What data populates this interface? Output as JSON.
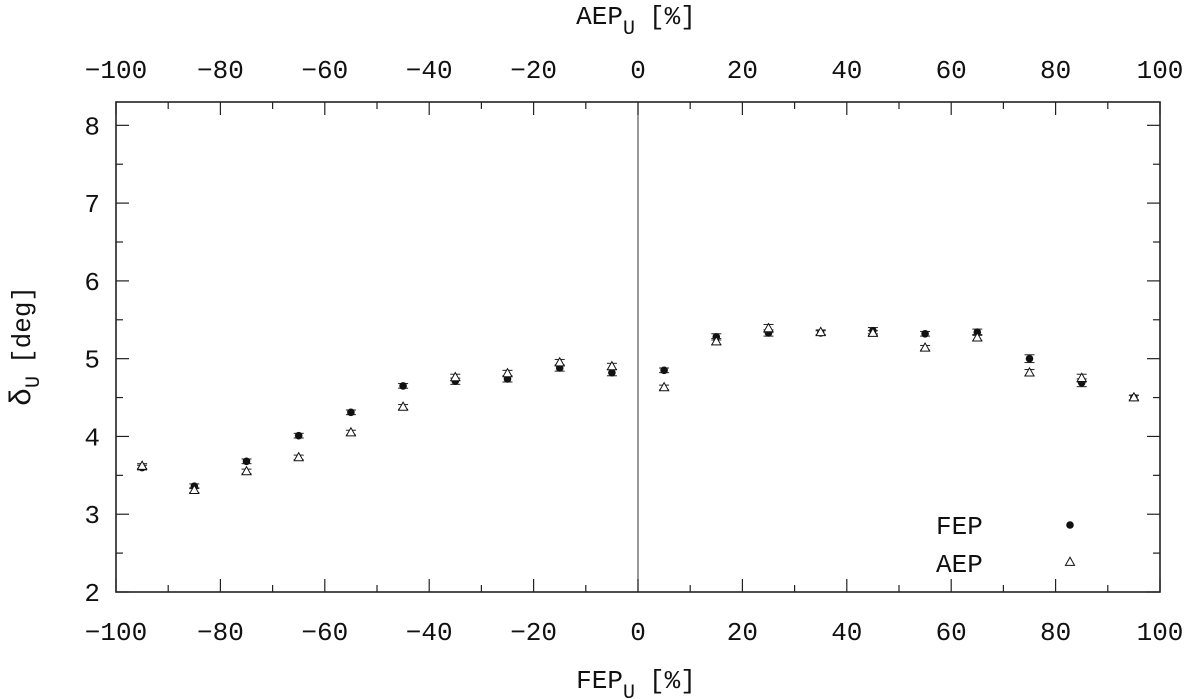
{
  "chart_data": {
    "type": "scatter",
    "title": "",
    "xlabel": "FEP",
    "xlabel_sub": "U",
    "xlabel_unit": "[%]",
    "x2label": "AEP",
    "x2label_sub": "U",
    "x2label_unit": "[%]",
    "ylabel": "δ",
    "ylabel_sub": "U",
    "ylabel_unit": "[deg]",
    "xlim": [
      -100,
      100
    ],
    "ylim": [
      2,
      8.3
    ],
    "x_ticks": [
      -100,
      -80,
      -60,
      -40,
      -20,
      0,
      20,
      40,
      60,
      80,
      100
    ],
    "x_tick_labels": [
      "−100",
      "−80",
      "−60",
      "−40",
      "−20",
      "0",
      "20",
      "40",
      "60",
      "80",
      "100"
    ],
    "y_ticks": [
      2,
      3,
      4,
      5,
      6,
      7,
      8
    ],
    "y_tick_labels": [
      "2",
      "3",
      "4",
      "5",
      "6",
      "7",
      "8"
    ],
    "zero_line": 0,
    "legend_position": "bottom-right",
    "series": [
      {
        "name": "FEP",
        "marker": "filled-circle",
        "color": "#111111",
        "x": [
          -95,
          -85,
          -75,
          -65,
          -55,
          -45,
          -35,
          -25,
          -15,
          -5,
          5,
          15,
          25,
          35,
          45,
          55,
          65,
          75,
          85,
          95
        ],
        "y": [
          3.6,
          3.36,
          3.68,
          4.01,
          4.31,
          4.65,
          4.71,
          4.74,
          4.88,
          4.82,
          4.85,
          5.28,
          5.33,
          5.33,
          5.36,
          5.32,
          5.34,
          5.0,
          4.69,
          4.5
        ],
        "err": [
          0.03,
          0.03,
          0.03,
          0.03,
          0.03,
          0.03,
          0.04,
          0.04,
          0.04,
          0.04,
          0.03,
          0.04,
          0.04,
          0.03,
          0.04,
          0.03,
          0.04,
          0.05,
          0.05,
          0.03
        ]
      },
      {
        "name": "AEP",
        "marker": "open-triangle",
        "color": "#111111",
        "x": [
          -95,
          -85,
          -75,
          -65,
          -55,
          -45,
          -35,
          -25,
          -15,
          -5,
          5,
          15,
          25,
          35,
          45,
          55,
          65,
          75,
          85,
          95
        ],
        "y": [
          3.62,
          3.31,
          3.55,
          3.73,
          4.05,
          4.38,
          4.76,
          4.81,
          4.95,
          4.9,
          4.63,
          5.22,
          5.39,
          5.34,
          5.33,
          5.14,
          5.27,
          4.82,
          4.75,
          4.5
        ],
        "err": [
          0.03,
          0.03,
          0.03,
          0.03,
          0.03,
          0.03,
          0.04,
          0.04,
          0.04,
          0.04,
          0.03,
          0.04,
          0.05,
          0.03,
          0.03,
          0.03,
          0.04,
          0.04,
          0.05,
          0.03
        ]
      }
    ]
  }
}
